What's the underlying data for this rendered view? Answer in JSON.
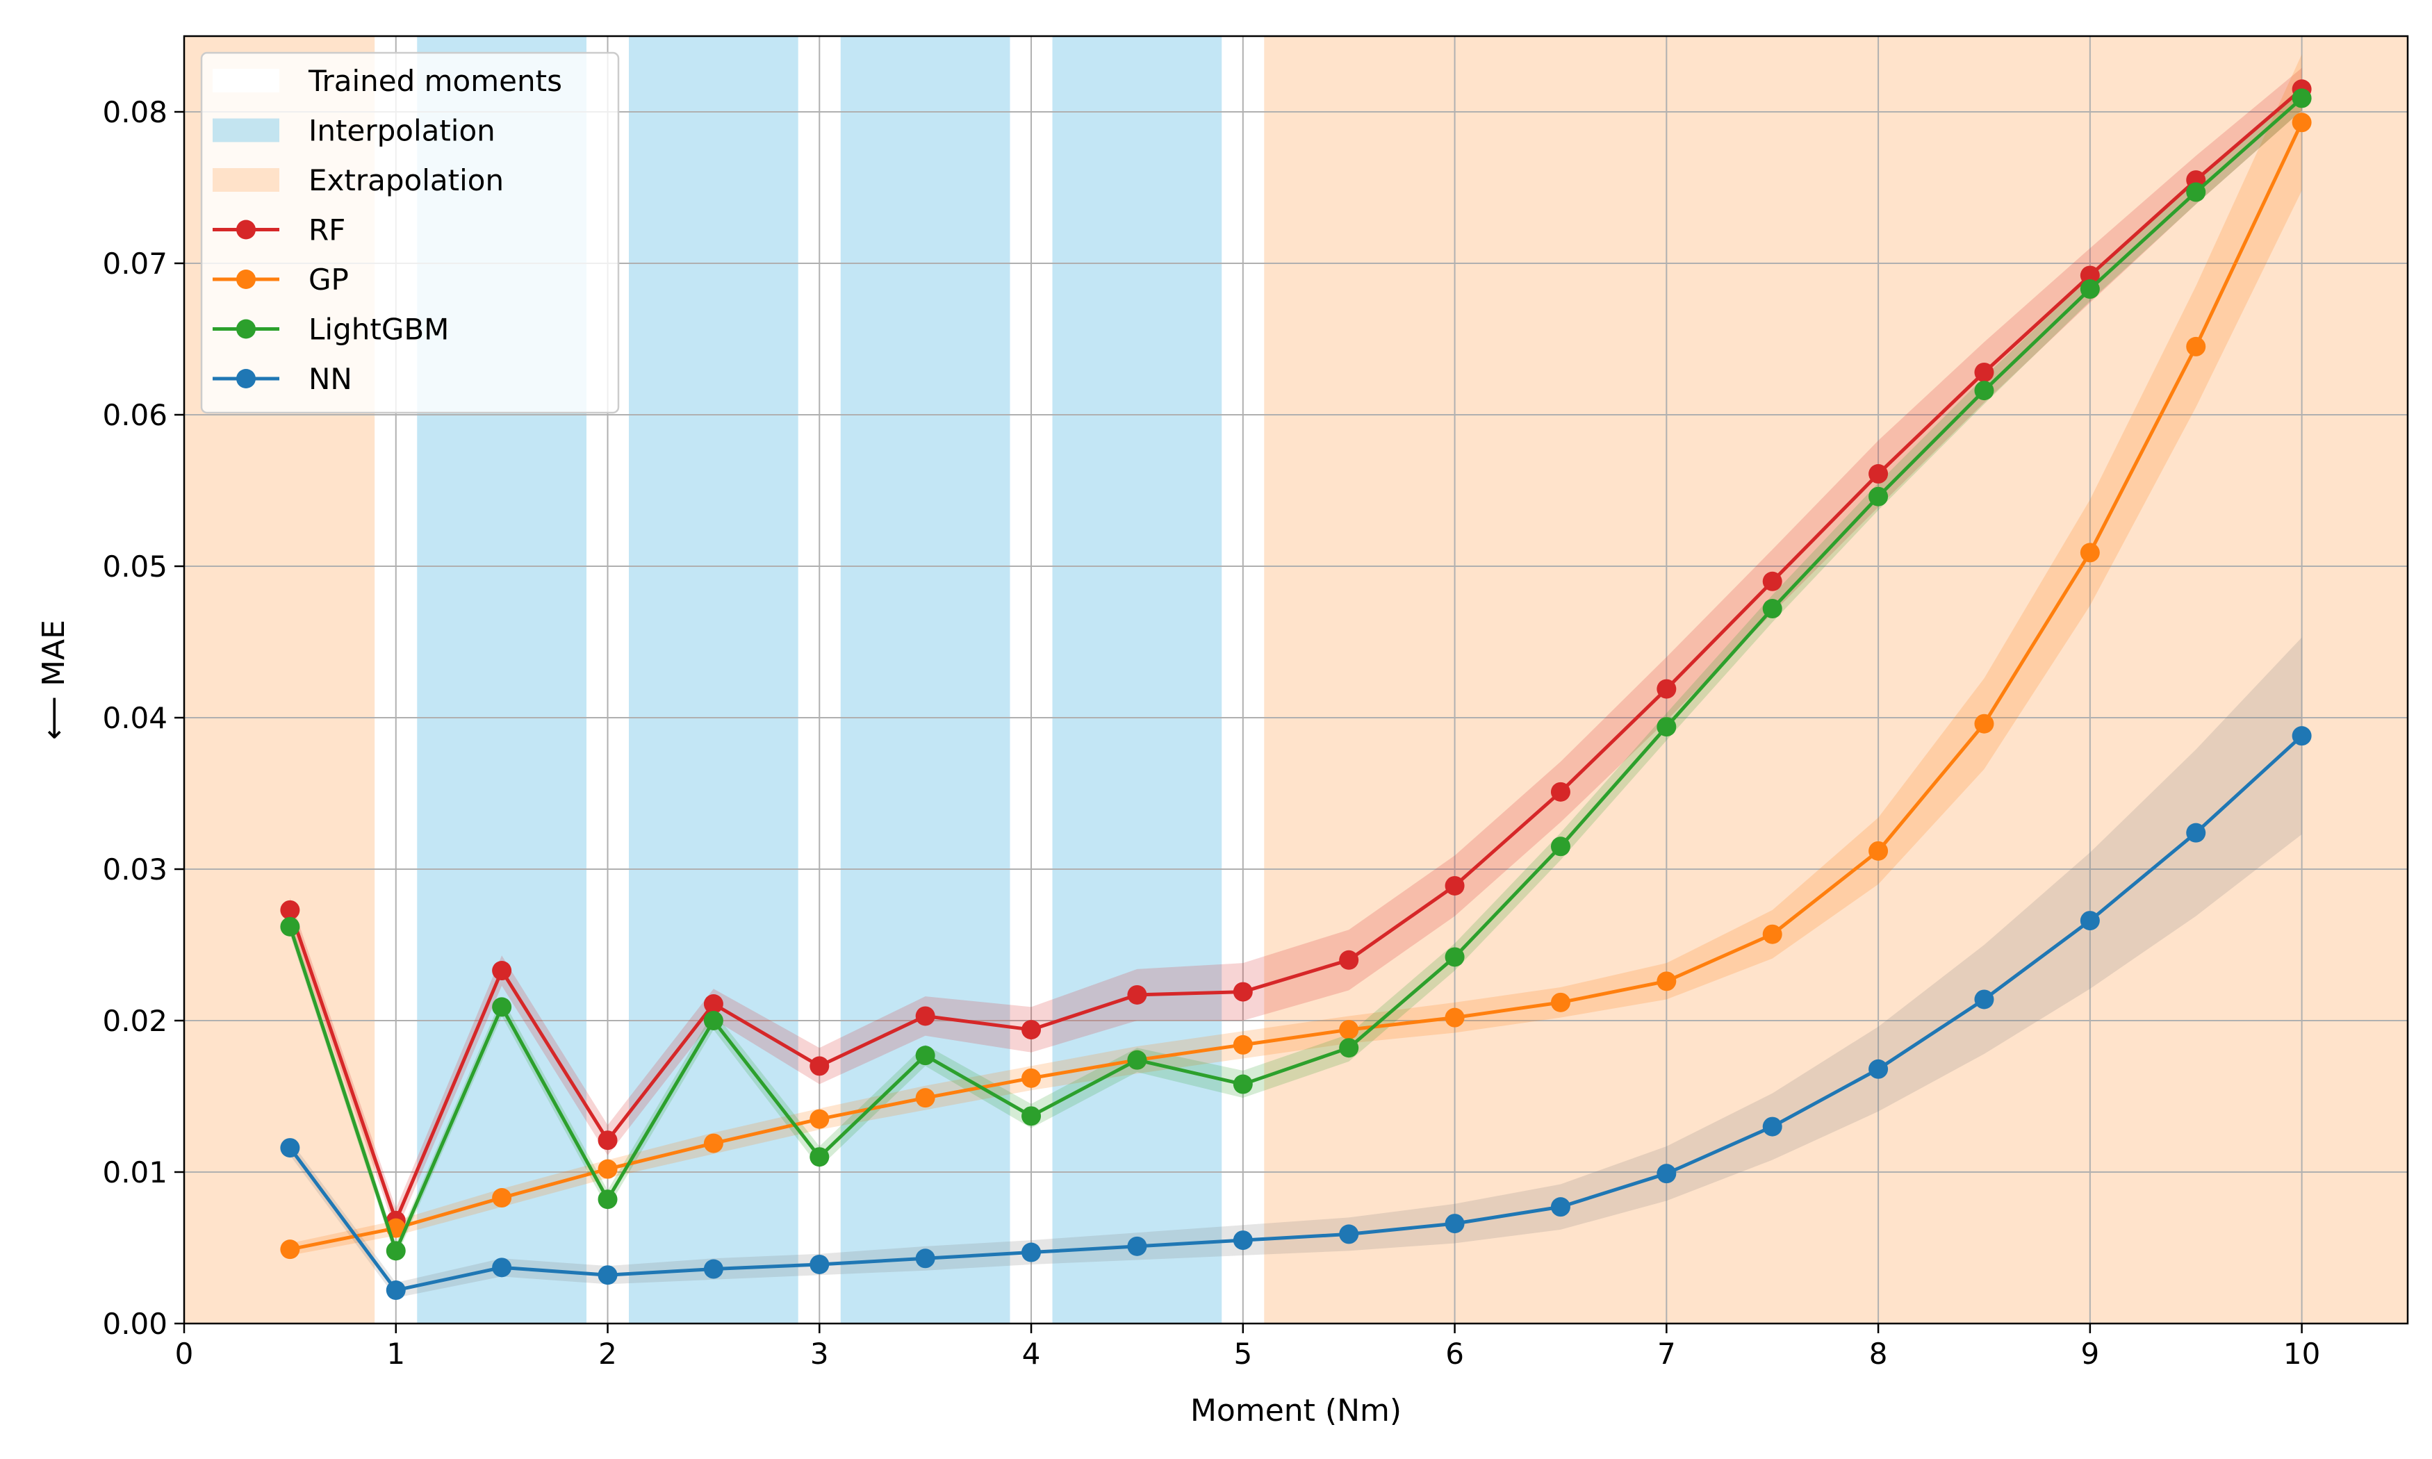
{
  "chart_data": {
    "type": "line",
    "title": "",
    "xlabel": "Moment (Nm)",
    "ylabel": "⟵ MAE",
    "xlim": [
      0,
      10.5
    ],
    "ylim": [
      0,
      0.085
    ],
    "grid": true,
    "xticks": [
      0,
      1,
      2,
      3,
      4,
      5,
      6,
      7,
      8,
      9,
      10
    ],
    "xtick_labels": [
      "0",
      "1",
      "2",
      "3",
      "4",
      "5",
      "6",
      "7",
      "8",
      "9",
      "10"
    ],
    "yticks": [
      0,
      0.01,
      0.02,
      0.03,
      0.04,
      0.05,
      0.06,
      0.07,
      0.08
    ],
    "ytick_labels": [
      "0.00",
      "0.01",
      "0.02",
      "0.03",
      "0.04",
      "0.05",
      "0.06",
      "0.07",
      "0.08"
    ],
    "x": [
      0.5,
      1,
      1.5,
      2,
      2.5,
      3,
      3.5,
      4,
      4.5,
      5,
      5.5,
      6,
      6.5,
      7,
      7.5,
      8,
      8.5,
      9,
      9.5,
      10
    ],
    "regions": [
      {
        "kind": "extrapolation",
        "from": 0,
        "to": 0.9
      },
      {
        "kind": "trained",
        "from": 0.9,
        "to": 1.1
      },
      {
        "kind": "interpolation",
        "from": 1.1,
        "to": 1.9
      },
      {
        "kind": "trained",
        "from": 1.9,
        "to": 2.1
      },
      {
        "kind": "interpolation",
        "from": 2.1,
        "to": 2.9
      },
      {
        "kind": "trained",
        "from": 2.9,
        "to": 3.1
      },
      {
        "kind": "interpolation",
        "from": 3.1,
        "to": 3.9
      },
      {
        "kind": "trained",
        "from": 3.9,
        "to": 4.1
      },
      {
        "kind": "interpolation",
        "from": 4.1,
        "to": 4.9
      },
      {
        "kind": "trained",
        "from": 4.9,
        "to": 5.1
      },
      {
        "kind": "extrapolation",
        "from": 5.1,
        "to": 10.5
      }
    ],
    "region_colors": {
      "trained": "#ffffff",
      "interpolation": "#87ceeb",
      "extrapolation": "#ffdab9"
    },
    "series": [
      {
        "name": "RF",
        "color": "#d62728",
        "values": [
          0.0273,
          0.0068,
          0.0233,
          0.0121,
          0.0211,
          0.017,
          0.0203,
          0.0194,
          0.0217,
          0.0219,
          0.024,
          0.0289,
          0.0351,
          0.0419,
          0.049,
          0.0561,
          0.0628,
          0.0692,
          0.0755,
          0.0815
        ],
        "band": [
          0.0008,
          0.0008,
          0.001,
          0.001,
          0.001,
          0.0012,
          0.0013,
          0.0015,
          0.0017,
          0.0019,
          0.002,
          0.002,
          0.002,
          0.0021,
          0.0021,
          0.0022,
          0.002,
          0.0018,
          0.0016,
          0.0014
        ]
      },
      {
        "name": "GP",
        "color": "#ff7f0e",
        "values": [
          0.0049,
          0.0063,
          0.0083,
          0.0102,
          0.0119,
          0.0135,
          0.0149,
          0.0162,
          0.0174,
          0.0184,
          0.0194,
          0.0202,
          0.0212,
          0.0226,
          0.0257,
          0.0312,
          0.0396,
          0.0509,
          0.0645,
          0.0793
        ],
        "band": [
          0.0004,
          0.0005,
          0.0006,
          0.0006,
          0.0007,
          0.0007,
          0.0008,
          0.0008,
          0.0009,
          0.0009,
          0.0009,
          0.001,
          0.001,
          0.0012,
          0.0016,
          0.0022,
          0.003,
          0.0035,
          0.004,
          0.0045
        ]
      },
      {
        "name": "LightGBM",
        "color": "#2ca02c",
        "values": [
          0.0262,
          0.0048,
          0.0209,
          0.0082,
          0.02,
          0.011,
          0.0177,
          0.0137,
          0.0174,
          0.0158,
          0.0182,
          0.0242,
          0.0315,
          0.0394,
          0.0472,
          0.0546,
          0.0616,
          0.0683,
          0.0747,
          0.0809
        ],
        "band": [
          0.0005,
          0.0005,
          0.0006,
          0.0006,
          0.0006,
          0.0007,
          0.0007,
          0.0008,
          0.0008,
          0.0009,
          0.0009,
          0.0009,
          0.0009,
          0.0009,
          0.0009,
          0.0009,
          0.0009,
          0.0008,
          0.0008,
          0.0008
        ]
      },
      {
        "name": "NN",
        "color": "#1f77b4",
        "values": [
          0.0116,
          0.0022,
          0.0037,
          0.0032,
          0.0036,
          0.0039,
          0.0043,
          0.0047,
          0.0051,
          0.0055,
          0.0059,
          0.0066,
          0.0077,
          0.0099,
          0.013,
          0.0168,
          0.0214,
          0.0266,
          0.0324,
          0.0388
        ],
        "band": [
          0.0005,
          0.0005,
          0.0006,
          0.0006,
          0.0007,
          0.0007,
          0.0008,
          0.0008,
          0.0009,
          0.001,
          0.0011,
          0.0013,
          0.0015,
          0.0018,
          0.0022,
          0.0028,
          0.0036,
          0.0045,
          0.0055,
          0.0065
        ]
      }
    ],
    "legend": {
      "position": "top-left",
      "entries": [
        {
          "label": "Trained moments",
          "kind": "patch",
          "color": "#ffffff"
        },
        {
          "label": "Interpolation",
          "kind": "patch",
          "color": "#87ceeb"
        },
        {
          "label": "Extrapolation",
          "kind": "patch",
          "color": "#ffdab9"
        },
        {
          "label": "RF",
          "kind": "line",
          "color": "#d62728"
        },
        {
          "label": "GP",
          "kind": "line",
          "color": "#ff7f0e"
        },
        {
          "label": "LightGBM",
          "kind": "line",
          "color": "#2ca02c"
        },
        {
          "label": "NN",
          "kind": "line",
          "color": "#1f77b4"
        }
      ]
    }
  }
}
